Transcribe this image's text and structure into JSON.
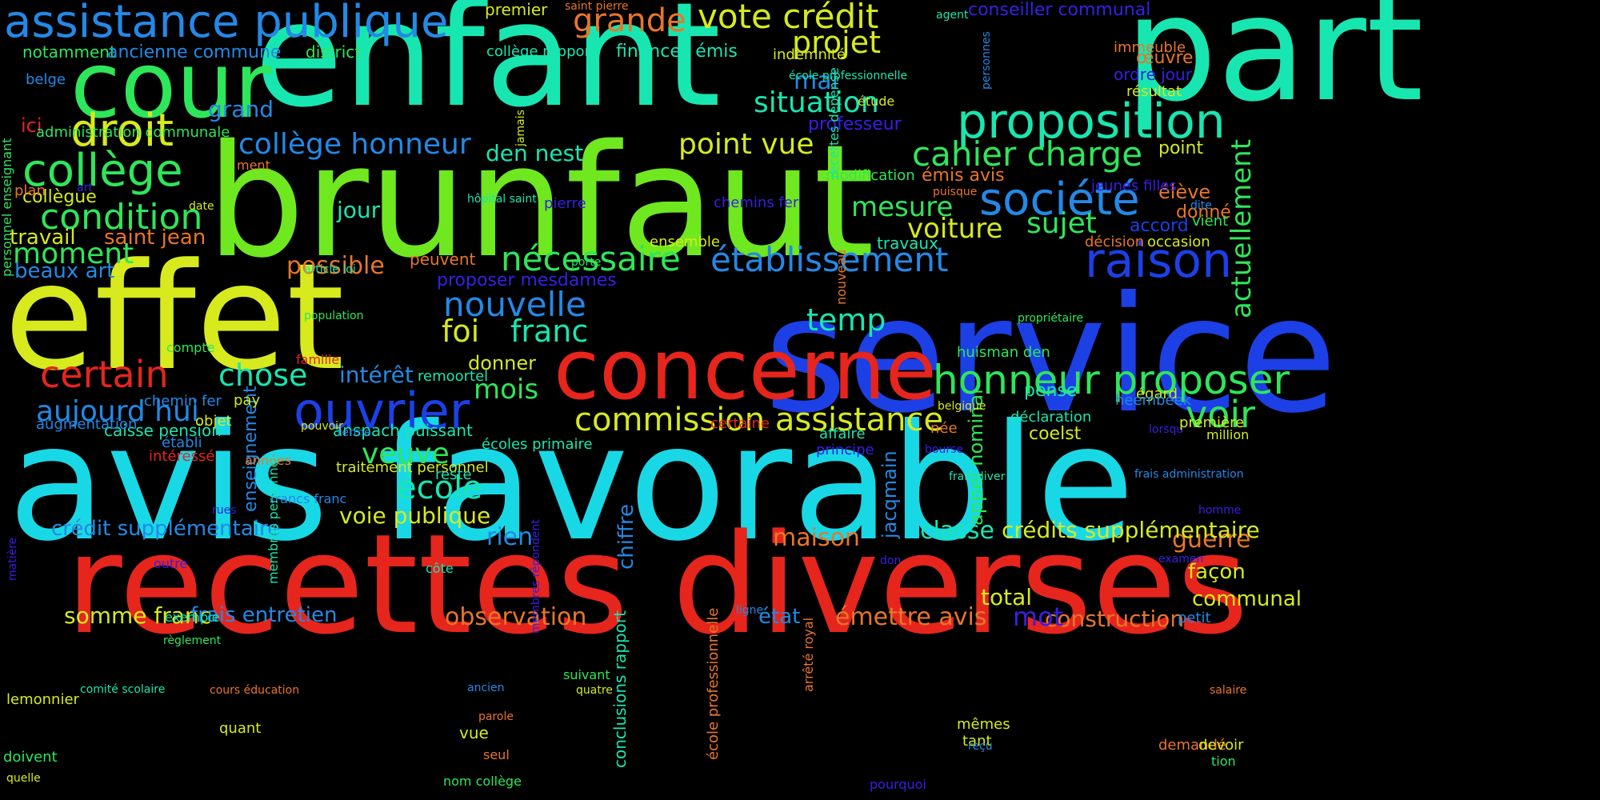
{
  "palette": {
    "background": "#000000",
    "red": "#e6251d",
    "orange": "#e8762a",
    "yellow": "#d6ea1d",
    "lime": "#6fe81f",
    "green": "#2ee65a",
    "teal": "#18e6b0",
    "cyan": "#19d8e6",
    "sky": "#2389e6",
    "blue": "#1c40e6",
    "indigo": "#3a1ee6"
  },
  "words": [
    "service",
    "avis favorable",
    "recettes diverses",
    "brunfaut",
    "effet",
    "enfant",
    "part",
    "cour",
    "concerne",
    "commission assistance",
    "honneur proposer",
    "ouvrier",
    "proposition",
    "société",
    "raison",
    "établissement",
    "cahier charge",
    "nécessaire",
    "collège",
    "droit",
    "condition",
    "voir",
    "assistance publique",
    "certain",
    "vote crédit",
    "grande",
    "projet",
    "situation",
    "mesure",
    "voiture",
    "sujet",
    "nouvelle",
    "franc",
    "foi",
    "point vue",
    "temp",
    "chose",
    "mois",
    "école",
    "veuve",
    "aujourd hui",
    "collège honneur",
    "intérêt",
    "moment",
    "travail",
    "saint jean",
    "actuellement",
    "guerre",
    "maison",
    "crédits supplémentaire",
    "crédit supplémentaire",
    "jour",
    "den nest",
    "possible",
    "beaux art",
    "grand",
    "mai",
    "observation",
    "émettre avis",
    "construction",
    "mot",
    "somme franc",
    "frais entretien",
    "voie publique",
    "classe",
    "rien",
    "chiffre",
    "appel nominal",
    "jacqmain",
    "enseignement",
    "façon",
    "communal",
    "total",
    "état",
    "proposer mesdames",
    "donner",
    "peuvent",
    "professeur",
    "point",
    "élève",
    "accord",
    "donné",
    "caisse pension",
    "anspach puissant",
    "coelst",
    "déclaration",
    "traitement personnel",
    "pense",
    "ici",
    "collègue",
    "notamment",
    "ancienne commune",
    "district",
    "conseiller communal",
    "finances émis",
    "émis avis",
    "travaux",
    "décision",
    "occasion",
    "œuvre",
    "ordre jour",
    "résultat",
    "immeuble",
    "administration communale",
    "belge",
    "personnel enseignant",
    "plan",
    "art",
    "date",
    "premier",
    "saint pierre",
    "agent",
    "indemnité",
    "collège rapport",
    "école professionnelle",
    "étude",
    "personnes",
    "jamais",
    "ment",
    "modification",
    "puisque",
    "chemins fer",
    "hôpital saint",
    "pierre",
    "recettes dépense",
    "jeunes filles",
    "dite",
    "vient",
    "ensemble",
    "porte",
    "nouveau",
    "article loi",
    "population",
    "propriétaire",
    "famille",
    "compte",
    "remoortel",
    "huisman den",
    "chemin fer",
    "pay",
    "augmentation",
    "objet",
    "établi",
    "intéressé",
    "années",
    "pouvoir",
    "terme",
    "écoles primaire",
    "certaine",
    "affaire",
    "principe",
    "belgique",
    "née",
    "bourse",
    "égard",
    "heembeek",
    "lorsqu",
    "première",
    "million",
    "reste",
    "francs franc",
    "frais diver",
    "frais administration",
    "rues",
    "homme",
    "outre",
    "matière",
    "côte",
    "membres personnel",
    "membres répondent",
    "conclusions rapport",
    "école professionnelle",
    "arrêté royal",
    "don",
    "examen",
    "exemple",
    "règlement",
    "ligne",
    "petit",
    "lemonnier",
    "comité scolaire",
    "cours éducation",
    "ancien",
    "quatre",
    "suivant",
    "salaire",
    "quant",
    "parole",
    "vue",
    "seul",
    "mêmes",
    "tant",
    "demandé",
    "devoir",
    "tion",
    "doivent",
    "quelle",
    "nom collège",
    "pourquoi",
    "reçu"
  ]
}
